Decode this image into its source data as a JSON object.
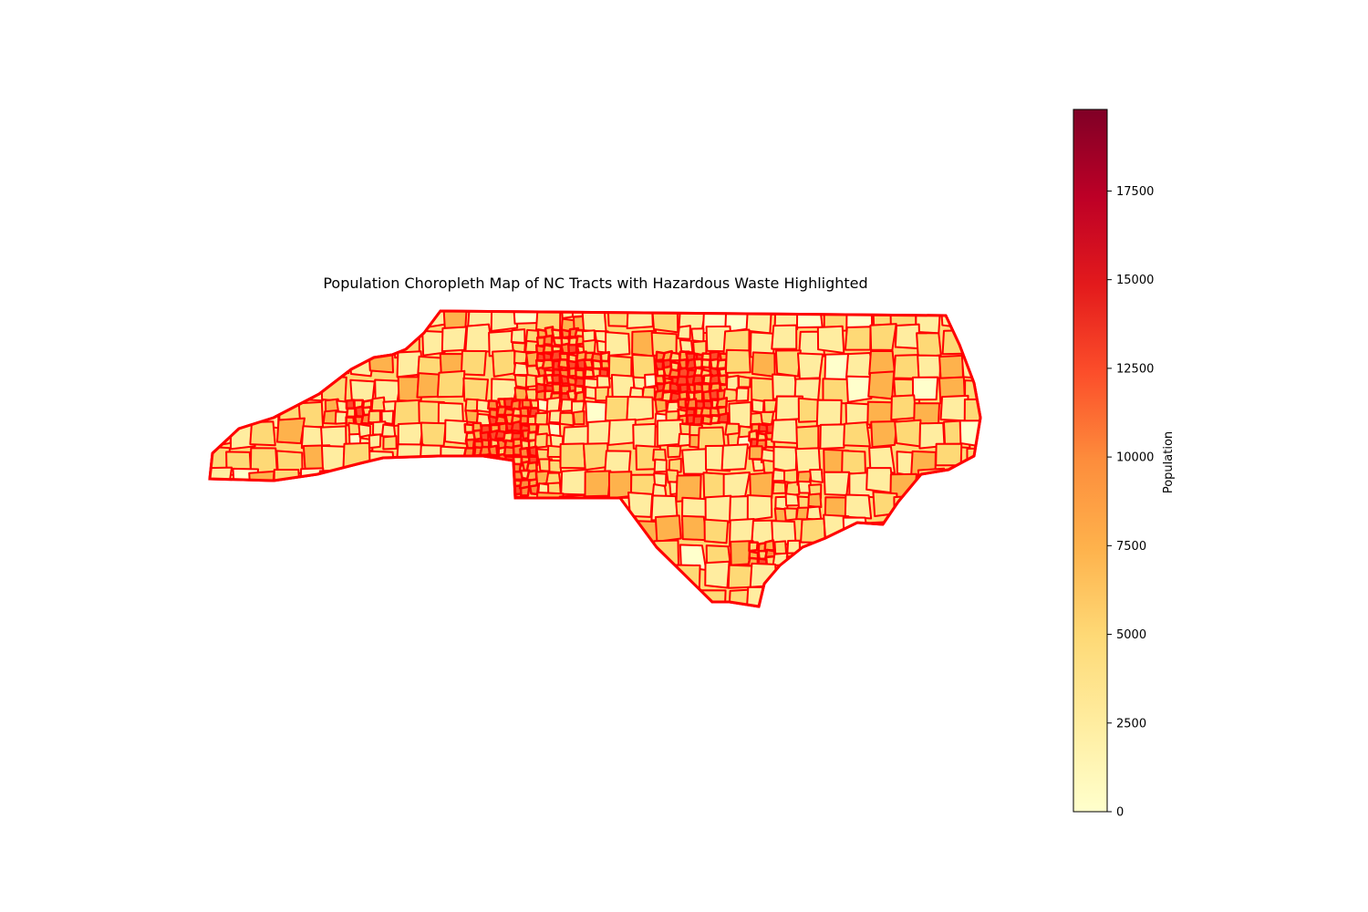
{
  "map": {
    "title": "Population Choropleth Map of NC Tracts with Hazardous Waste Highlighted",
    "region": "North Carolina census tracts",
    "fill_colormap": "YlOrRd",
    "boundary_color": "#ff0000",
    "background": "#ffffff",
    "axes_visible": false
  },
  "colorbar": {
    "label": "Population",
    "min": 0,
    "max": 19800,
    "ticks": [
      0,
      2500,
      5000,
      7500,
      10000,
      12500,
      15000,
      17500
    ],
    "tick_labels": [
      "0",
      "2500",
      "5000",
      "7500",
      "10000",
      "12500",
      "15000",
      "17500"
    ],
    "colors": [
      "#ffffcc",
      "#ffeda0",
      "#fed976",
      "#feb24c",
      "#fd8d3c",
      "#fc4e2a",
      "#e31a1c",
      "#bd0026",
      "#800026"
    ]
  }
}
